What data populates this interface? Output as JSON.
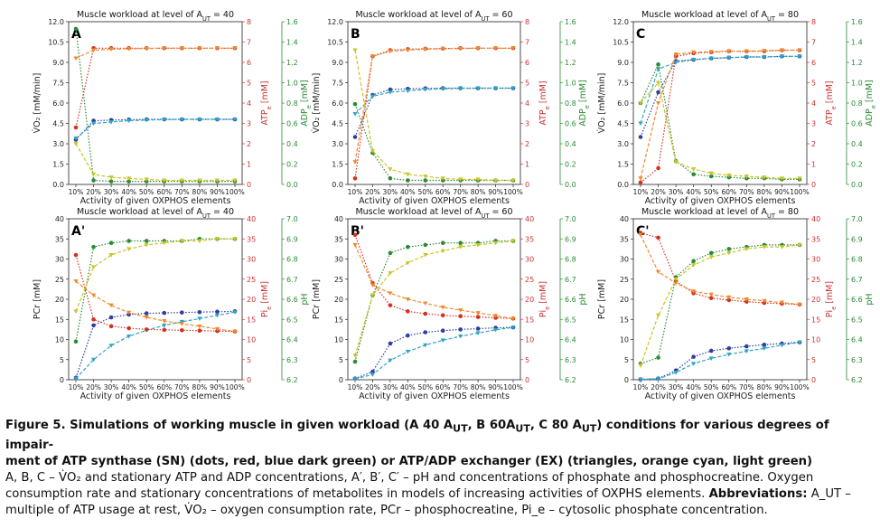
{
  "caption": {
    "line1": "Figure 5. Simulations of working muscle in given workload (A 40 A",
    "ut_sub": "UT",
    "line1b": ", B 60A",
    "line1c": ", C 80 A",
    "line1d": ") conditions for various degrees of impair-",
    "line2": "ment of ATP synthase (SN) (dots, red, blue dark green) or ATP/ADP exchanger (EX) (triangles, orange cyan, light green)",
    "body": "A, B, C – V̇O₂ and stationary ATP and ADP concentrations, A′, B′, C′ – pH and concentrations of phosphate and phosphocreatine. Oxygen consumption rate and stationary concentrations of metabolites in models of increasing activities of OXPHS elements.",
    "abbr_label": "Abbreviations:",
    "abbr_text": " A_UT – multiple of ATP usage at rest, V̇O₂ – oxygen consumption rate, PCr – phosphocreatine, Pi_e – cytosolic phosphate concentration."
  },
  "colors": {
    "sn_primary": "#2e3f9e",
    "ex_primary": "#30a5c2",
    "sn_secondary": "#d4311f",
    "ex_secondary": "#f08a30",
    "sn_tertiary": "#2a8a35",
    "ex_tertiary": "#c9c52a"
  },
  "chart_data": [
    {
      "panel": "A",
      "type": "line",
      "title": "Muscle workload at level of A_UT = 40",
      "xlabel": "Activity of given OXPHOS elements",
      "ylabel_left": "V̇O₂ [mM/min]",
      "ylabel_right1": "ATP_e [mM]",
      "ylabel_right2": "ADP_e [mM]",
      "categories": [
        "10%",
        "20%",
        "30%",
        "40%",
        "50%",
        "60%",
        "70%",
        "80%",
        "90%",
        "100%"
      ],
      "ylim_left": [
        0,
        12
      ],
      "yticks_left": [
        "0.0",
        "1.5",
        "3.0",
        "4.5",
        "6.0",
        "7.5",
        "9.0",
        "10.5",
        "12.0"
      ],
      "ylim_right1": [
        0,
        8
      ],
      "yticks_right1": [
        "0",
        "1",
        "2",
        "3",
        "4",
        "5",
        "6",
        "7",
        "8"
      ],
      "ylim_right2": [
        0,
        1.6
      ],
      "yticks_right2": [
        "0.0",
        "0.2",
        "0.4",
        "0.6",
        "0.8",
        "1.0",
        "1.2",
        "1.4",
        "1.6"
      ],
      "series": [
        {
          "axis": "left",
          "color": "sn_primary",
          "marker": "dot",
          "values": [
            3.3,
            4.7,
            4.75,
            4.78,
            4.8,
            4.8,
            4.8,
            4.8,
            4.8,
            4.8
          ]
        },
        {
          "axis": "left",
          "color": "ex_primary",
          "marker": "tri",
          "values": [
            3.4,
            4.5,
            4.6,
            4.7,
            4.75,
            4.78,
            4.8,
            4.8,
            4.8,
            4.8
          ]
        },
        {
          "axis": "right1",
          "color": "sn_secondary",
          "marker": "dot",
          "values": [
            2.8,
            6.7,
            6.7,
            6.7,
            6.7,
            6.7,
            6.7,
            6.7,
            6.7,
            6.7
          ]
        },
        {
          "axis": "right1",
          "color": "ex_secondary",
          "marker": "tri",
          "values": [
            6.2,
            6.6,
            6.65,
            6.67,
            6.68,
            6.7,
            6.7,
            6.7,
            6.7,
            6.7
          ]
        },
        {
          "axis": "right2",
          "color": "sn_tertiary",
          "marker": "dot",
          "values": [
            1.53,
            0.04,
            0.03,
            0.03,
            0.03,
            0.03,
            0.03,
            0.03,
            0.03,
            0.03
          ]
        },
        {
          "axis": "right2",
          "color": "ex_tertiary",
          "marker": "tri",
          "values": [
            0.4,
            0.1,
            0.07,
            0.06,
            0.05,
            0.04,
            0.04,
            0.04,
            0.04,
            0.04
          ]
        }
      ]
    },
    {
      "panel": "B",
      "type": "line",
      "title": "Muscle workload at level of A_UT = 60",
      "xlabel": "Activity of given OXPHOS elements",
      "ylabel_left": "V̇O₂ [mM/min]",
      "ylabel_right1": "ATP_e [mM]",
      "ylabel_right2": "ADP_e [mM]",
      "categories": [
        "10%",
        "20%",
        "30%",
        "40%",
        "50%",
        "60%",
        "70%",
        "80%",
        "90%",
        "100%"
      ],
      "ylim_left": [
        0,
        12
      ],
      "yticks_left": [
        "0.0",
        "1.5",
        "3.0",
        "4.5",
        "6.0",
        "7.5",
        "9.0",
        "10.5",
        "12.0"
      ],
      "ylim_right1": [
        0,
        8
      ],
      "yticks_right1": [
        "0",
        "1",
        "2",
        "3",
        "4",
        "5",
        "6",
        "7",
        "8"
      ],
      "ylim_right2": [
        0,
        1.6
      ],
      "yticks_right2": [
        "0.0",
        "0.2",
        "0.4",
        "0.6",
        "0.8",
        "1.0",
        "1.2",
        "1.4",
        "1.6"
      ],
      "series": [
        {
          "axis": "left",
          "color": "sn_primary",
          "marker": "dot",
          "values": [
            3.5,
            6.6,
            7.0,
            7.05,
            7.08,
            7.1,
            7.1,
            7.1,
            7.1,
            7.1
          ]
        },
        {
          "axis": "left",
          "color": "ex_primary",
          "marker": "tri",
          "values": [
            5.2,
            6.5,
            6.8,
            6.9,
            7.0,
            7.05,
            7.08,
            7.1,
            7.1,
            7.1
          ]
        },
        {
          "axis": "right1",
          "color": "sn_secondary",
          "marker": "dot",
          "values": [
            0.3,
            6.3,
            6.6,
            6.65,
            6.67,
            6.68,
            6.7,
            6.7,
            6.7,
            6.7
          ]
        },
        {
          "axis": "right1",
          "color": "ex_secondary",
          "marker": "tri",
          "values": [
            1.1,
            6.3,
            6.55,
            6.6,
            6.65,
            6.67,
            6.68,
            6.7,
            6.7,
            6.7
          ]
        },
        {
          "axis": "right2",
          "color": "sn_tertiary",
          "marker": "dot",
          "values": [
            0.79,
            0.31,
            0.06,
            0.04,
            0.04,
            0.04,
            0.04,
            0.04,
            0.04,
            0.04
          ]
        },
        {
          "axis": "right2",
          "color": "ex_tertiary",
          "marker": "tri",
          "values": [
            1.32,
            0.33,
            0.15,
            0.1,
            0.08,
            0.06,
            0.05,
            0.05,
            0.04,
            0.04
          ]
        }
      ]
    },
    {
      "panel": "C",
      "type": "line",
      "title": "Muscle workload at level of A_UT = 80",
      "xlabel": "Activity of given OXPHOS elements",
      "ylabel_left": "V̇O₂ [mM/min]",
      "ylabel_right1": "ATP_e [mM]",
      "ylabel_right2": "ADP_e [mM]",
      "categories": [
        "10%",
        "20%",
        "30%",
        "40%",
        "50%",
        "60%",
        "70%",
        "80%",
        "90%",
        "100%"
      ],
      "ylim_left": [
        0,
        12
      ],
      "yticks_left": [
        "0.0",
        "1.5",
        "3.0",
        "4.5",
        "6.0",
        "7.5",
        "9.0",
        "10.5",
        "12.0"
      ],
      "ylim_right1": [
        0,
        8
      ],
      "yticks_right1": [
        "0",
        "1",
        "2",
        "3",
        "4",
        "5",
        "6",
        "7",
        "8"
      ],
      "ylim_right2": [
        0,
        1.6
      ],
      "yticks_right2": [
        "0.0",
        "0.2",
        "0.4",
        "0.6",
        "0.8",
        "1.0",
        "1.2",
        "1.4",
        "1.6"
      ],
      "series": [
        {
          "axis": "left",
          "color": "sn_primary",
          "marker": "dot",
          "values": [
            3.5,
            6.8,
            9.1,
            9.2,
            9.3,
            9.35,
            9.4,
            9.4,
            9.45,
            9.45
          ]
        },
        {
          "axis": "left",
          "color": "ex_primary",
          "marker": "tri",
          "values": [
            4.5,
            8.5,
            9.0,
            9.2,
            9.3,
            9.35,
            9.4,
            9.4,
            9.45,
            9.45
          ]
        },
        {
          "axis": "right1",
          "color": "sn_secondary",
          "marker": "dot",
          "values": [
            0.1,
            0.8,
            6.3,
            6.45,
            6.5,
            6.55,
            6.55,
            6.55,
            6.6,
            6.6
          ]
        },
        {
          "axis": "right1",
          "color": "ex_secondary",
          "marker": "tri",
          "values": [
            0.3,
            4.0,
            6.4,
            6.5,
            6.52,
            6.55,
            6.55,
            6.57,
            6.6,
            6.6
          ]
        },
        {
          "axis": "right2",
          "color": "sn_tertiary",
          "marker": "dot",
          "values": [
            0.8,
            1.18,
            0.23,
            0.1,
            0.08,
            0.07,
            0.06,
            0.06,
            0.05,
            0.05
          ]
        },
        {
          "axis": "right2",
          "color": "ex_tertiary",
          "marker": "tri",
          "values": [
            0.8,
            1.0,
            0.22,
            0.15,
            0.11,
            0.09,
            0.08,
            0.07,
            0.06,
            0.06
          ]
        }
      ]
    },
    {
      "panel": "A'",
      "type": "line",
      "title": "Muscle workload at level of A_UT = 40",
      "xlabel": "Activity of given OXPHOS elements",
      "ylabel_left": "PCr [mM]",
      "ylabel_right1": "Pi_e [mM]",
      "ylabel_right2": "pH",
      "categories": [
        "10%",
        "20%",
        "30%",
        "40%",
        "50%",
        "60%",
        "70%",
        "80%",
        "90%",
        "100%"
      ],
      "ylim_left": [
        0,
        40
      ],
      "yticks_left": [
        "0",
        "5",
        "10",
        "15",
        "20",
        "25",
        "30",
        "35",
        "40"
      ],
      "ylim_right1": [
        0,
        40
      ],
      "yticks_right1": [
        "0",
        "5",
        "10",
        "15",
        "20",
        "25",
        "30",
        "35",
        "40"
      ],
      "ylim_right2": [
        6.2,
        7.0
      ],
      "yticks_right2": [
        "6.2",
        "6.3",
        "6.4",
        "6.5",
        "6.6",
        "6.7",
        "6.8",
        "6.9",
        "7.0"
      ],
      "series": [
        {
          "axis": "left",
          "color": "sn_primary",
          "marker": "dot",
          "values": [
            0.5,
            13.5,
            15.5,
            16.2,
            16.5,
            16.6,
            16.7,
            16.8,
            16.9,
            17.0
          ]
        },
        {
          "axis": "left",
          "color": "ex_primary",
          "marker": "tri",
          "values": [
            0.3,
            5.0,
            8.5,
            10.8,
            12.3,
            13.5,
            14.4,
            15.2,
            16.0,
            16.8
          ]
        },
        {
          "axis": "right1",
          "color": "sn_secondary",
          "marker": "dot",
          "values": [
            31.0,
            15.0,
            13.3,
            12.8,
            12.5,
            12.4,
            12.3,
            12.2,
            12.1,
            12.0
          ]
        },
        {
          "axis": "right1",
          "color": "ex_secondary",
          "marker": "tri",
          "values": [
            24.5,
            21.0,
            18.5,
            16.7,
            15.5,
            14.6,
            13.9,
            13.3,
            12.6,
            12.0
          ]
        },
        {
          "axis": "right2",
          "color": "sn_tertiary",
          "marker": "dot",
          "values": [
            6.39,
            6.86,
            6.88,
            6.89,
            6.89,
            6.89,
            6.89,
            6.9,
            6.9,
            6.9
          ]
        },
        {
          "axis": "right2",
          "color": "ex_tertiary",
          "marker": "tri",
          "values": [
            6.54,
            6.76,
            6.82,
            6.85,
            6.87,
            6.88,
            6.89,
            6.89,
            6.9,
            6.9
          ]
        }
      ]
    },
    {
      "panel": "B'",
      "type": "line",
      "title": "Muscle workload at level of A_UT = 60",
      "xlabel": "Activity of given OXPHOS elements",
      "ylabel_left": "PCr [mM]",
      "ylabel_right1": "Pi_e [mM]",
      "ylabel_right2": "pH",
      "categories": [
        "10%",
        "20%",
        "30%",
        "40%",
        "50%",
        "60%",
        "70%",
        "80%",
        "90%",
        "100%"
      ],
      "ylim_left": [
        0,
        40
      ],
      "yticks_left": [
        "0",
        "5",
        "10",
        "15",
        "20",
        "25",
        "30",
        "35",
        "40"
      ],
      "ylim_right1": [
        0,
        40
      ],
      "yticks_right1": [
        "0",
        "5",
        "10",
        "15",
        "20",
        "25",
        "30",
        "35",
        "40"
      ],
      "ylim_right2": [
        6.2,
        7.0
      ],
      "yticks_right2": [
        "6.2",
        "6.3",
        "6.4",
        "6.5",
        "6.6",
        "6.7",
        "6.8",
        "6.9",
        "7.0"
      ],
      "series": [
        {
          "axis": "left",
          "color": "sn_primary",
          "marker": "dot",
          "values": [
            0.3,
            2.0,
            9.0,
            11.0,
            11.8,
            12.2,
            12.5,
            12.7,
            12.9,
            13.0
          ]
        },
        {
          "axis": "left",
          "color": "ex_primary",
          "marker": "tri",
          "values": [
            0.2,
            1.3,
            4.8,
            7.0,
            8.6,
            9.8,
            10.8,
            11.6,
            12.4,
            13.0
          ]
        },
        {
          "axis": "right1",
          "color": "sn_secondary",
          "marker": "dot",
          "values": [
            36.0,
            24.0,
            18.5,
            17.0,
            16.4,
            16.0,
            15.8,
            15.6,
            15.4,
            15.2
          ]
        },
        {
          "axis": "right1",
          "color": "ex_secondary",
          "marker": "tri",
          "values": [
            33.5,
            23.5,
            21.5,
            20.0,
            19.0,
            18.0,
            17.3,
            16.6,
            15.9,
            15.2
          ]
        },
        {
          "axis": "right2",
          "color": "sn_tertiary",
          "marker": "dot",
          "values": [
            6.29,
            6.62,
            6.83,
            6.86,
            6.87,
            6.88,
            6.88,
            6.88,
            6.89,
            6.89
          ]
        },
        {
          "axis": "right2",
          "color": "ex_tertiary",
          "marker": "tri",
          "values": [
            6.32,
            6.62,
            6.73,
            6.78,
            6.82,
            6.84,
            6.86,
            6.87,
            6.88,
            6.89
          ]
        }
      ]
    },
    {
      "panel": "C'",
      "type": "line",
      "title": "Muscle workload at level of A_UT = 80",
      "xlabel": "Activity of given OXPHOS elements",
      "ylabel_left": "PCr [mM]",
      "ylabel_right1": "Pi_e [mM]",
      "ylabel_right2": "pH",
      "categories": [
        "10%",
        "20%",
        "30%",
        "40%",
        "50%",
        "60%",
        "70%",
        "80%",
        "90%",
        "100%"
      ],
      "ylim_left": [
        0,
        40
      ],
      "yticks_left": [
        "0",
        "5",
        "10",
        "15",
        "20",
        "25",
        "30",
        "35",
        "40"
      ],
      "ylim_right1": [
        0,
        40
      ],
      "yticks_right1": [
        "0",
        "5",
        "10",
        "15",
        "20",
        "25",
        "30",
        "35",
        "40"
      ],
      "ylim_right2": [
        6.2,
        7.0
      ],
      "yticks_right2": [
        "6.2",
        "6.3",
        "6.4",
        "6.5",
        "6.6",
        "6.7",
        "6.8",
        "6.9",
        "7.0"
      ],
      "series": [
        {
          "axis": "left",
          "color": "sn_primary",
          "marker": "dot",
          "values": [
            0.1,
            0.3,
            2.3,
            5.7,
            7.2,
            7.8,
            8.3,
            8.7,
            9.0,
            9.3
          ]
        },
        {
          "axis": "left",
          "color": "ex_primary",
          "marker": "tri",
          "values": [
            0.1,
            0.2,
            1.8,
            4.0,
            5.3,
            6.3,
            7.1,
            7.8,
            8.6,
            9.3
          ]
        },
        {
          "axis": "right1",
          "color": "sn_secondary",
          "marker": "dot",
          "values": [
            36.5,
            35.3,
            24.5,
            21.5,
            20.3,
            19.8,
            19.4,
            19.1,
            18.9,
            18.7
          ]
        },
        {
          "axis": "right1",
          "color": "ex_secondary",
          "marker": "tri",
          "values": [
            36.0,
            26.8,
            24.0,
            22.0,
            21.2,
            20.5,
            20.0,
            19.6,
            19.2,
            18.7
          ]
        },
        {
          "axis": "right2",
          "color": "sn_tertiary",
          "marker": "dot",
          "values": [
            6.28,
            6.31,
            6.71,
            6.79,
            6.83,
            6.85,
            6.86,
            6.87,
            6.87,
            6.87
          ]
        },
        {
          "axis": "right2",
          "color": "ex_tertiary",
          "marker": "tri",
          "values": [
            6.27,
            6.52,
            6.7,
            6.77,
            6.81,
            6.83,
            6.85,
            6.86,
            6.86,
            6.87
          ]
        }
      ]
    }
  ]
}
